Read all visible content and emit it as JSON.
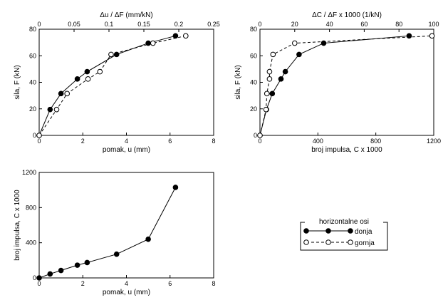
{
  "chart_data": [
    {
      "type": "scatter",
      "xlabel": "pomak, u (mm)",
      "ylabel": "sila, F (kN)",
      "x2label": "Δu / ΔF (mm/kN)",
      "xlim": [
        0,
        8
      ],
      "ylim": [
        0,
        80
      ],
      "x2lim": [
        0,
        0.25
      ],
      "xticks": [
        "0",
        "2",
        "4",
        "6",
        "8"
      ],
      "yticks": [
        "0",
        "20",
        "40",
        "60",
        "80"
      ],
      "x2ticks": [
        "0",
        "0.05",
        "0.1",
        "0.15",
        "0.2",
        "0.25"
      ],
      "series": [
        {
          "name": "donja",
          "axis": "bottom",
          "marker": "filled",
          "line": "solid",
          "x": [
            0,
            0.5,
            1.0,
            1.75,
            2.2,
            3.55,
            5.0,
            6.25
          ],
          "y": [
            0,
            19.5,
            31.5,
            42.5,
            48,
            61,
            69.5,
            75
          ]
        },
        {
          "name": "gornja",
          "axis": "top",
          "marker": "open",
          "line": "dashed",
          "x": [
            0,
            0.025,
            0.04,
            0.07,
            0.087,
            0.103,
            0.163,
            0.21
          ],
          "y": [
            0,
            19.5,
            31.5,
            42.5,
            48,
            61,
            69.5,
            75
          ]
        }
      ]
    },
    {
      "type": "scatter",
      "xlabel": "broj impulsa, C x 1000",
      "ylabel": "sila, F (kN)",
      "x2label": "ΔC / ΔF x 1000 (1/kN)",
      "xlim": [
        0,
        1200
      ],
      "ylim": [
        0,
        80
      ],
      "x2lim": [
        0,
        100
      ],
      "xticks": [
        "0",
        "400",
        "800",
        "1200"
      ],
      "yticks": [
        "0",
        "20",
        "40",
        "60",
        "80"
      ],
      "x2ticks": [
        "0",
        "20",
        "40",
        "60",
        "80",
        "100"
      ],
      "series": [
        {
          "name": "donja",
          "axis": "bottom",
          "marker": "filled",
          "line": "solid",
          "x": [
            0,
            45,
            85,
            145,
            175,
            270,
            440,
            1030
          ],
          "y": [
            0,
            19.5,
            31.5,
            42.5,
            48,
            61,
            69.5,
            75
          ]
        },
        {
          "name": "gornja",
          "axis": "top",
          "marker": "open",
          "line": "dashed",
          "x": [
            0,
            3.5,
            4,
            5.5,
            5.5,
            7.5,
            20,
            99
          ],
          "y": [
            0,
            19.5,
            31.5,
            42.5,
            48,
            61,
            69.5,
            75
          ]
        }
      ]
    },
    {
      "type": "line",
      "xlabel": "pomak, u (mm)",
      "ylabel": "broj impulsa, C x 1000",
      "xlim": [
        0,
        8
      ],
      "ylim": [
        0,
        1200
      ],
      "xticks": [
        "0",
        "2",
        "4",
        "6",
        "8"
      ],
      "yticks": [
        "0",
        "400",
        "800",
        "1200"
      ],
      "series": [
        {
          "name": "donja",
          "axis": "bottom",
          "marker": "filled",
          "line": "solid",
          "x": [
            0,
            0.5,
            1.0,
            1.75,
            2.2,
            3.55,
            5.0,
            6.25
          ],
          "y": [
            0,
            45,
            85,
            145,
            175,
            270,
            440,
            1030
          ]
        }
      ]
    }
  ],
  "legend": {
    "title": "horizontalne osi",
    "items": [
      {
        "label": "donja",
        "marker": "filled",
        "line": "solid"
      },
      {
        "label": "gornja",
        "marker": "open",
        "line": "dashed"
      }
    ]
  }
}
